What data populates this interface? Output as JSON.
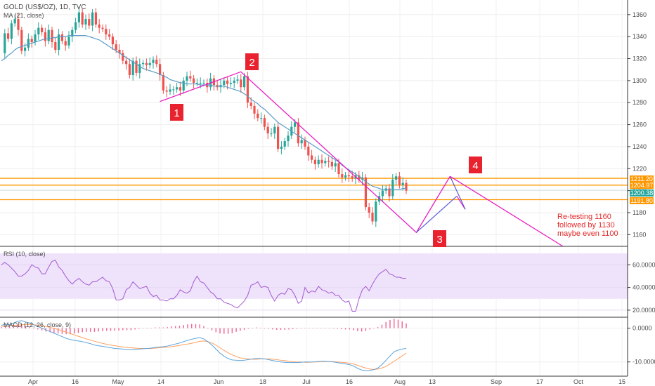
{
  "header": {
    "title": "GOLD (US$/OZ), 1D, TVC",
    "ma_label": "MA (21, close)"
  },
  "colors": {
    "up": "#26a69a",
    "down": "#ef5350",
    "ma": "#5b9cc8",
    "orange": "#ff9800",
    "magenta": "#e91ec1",
    "rsi": "#a25bd0",
    "rsi_band": "#efe2fb",
    "marker": "#e8232f",
    "orange_label": "#ff9800",
    "macd": "#5ba4db",
    "signal": "#ff9f60",
    "hist": "#f06292"
  },
  "chart_data": [
    {
      "type": "candlestick",
      "title": "GOLD (US$/OZ), 1D, TVC",
      "ylim": [
        1150,
        1372
      ],
      "yticks": [
        1160,
        1180,
        1200,
        1220,
        1240,
        1260,
        1280,
        1300,
        1320,
        1340,
        1360
      ],
      "xticks": [
        "Apr",
        "16",
        "May",
        "14",
        "Jun",
        "18",
        "Jul",
        "16",
        "Aug",
        "13",
        "Sep",
        "17",
        "Oct",
        "15"
      ],
      "close": [
        1325,
        1343,
        1338,
        1352,
        1356,
        1346,
        1327,
        1330,
        1338,
        1335,
        1342,
        1348,
        1344,
        1336,
        1346,
        1335,
        1328,
        1342,
        1336,
        1332,
        1340,
        1346,
        1353,
        1362,
        1351,
        1356,
        1350,
        1362,
        1351,
        1348,
        1347,
        1342,
        1340,
        1333,
        1328,
        1325,
        1318,
        1315,
        1305,
        1318,
        1307,
        1315,
        1316,
        1314,
        1316,
        1319,
        1315,
        1305,
        1291,
        1290,
        1292,
        1292,
        1294,
        1291,
        1300,
        1304,
        1302,
        1298,
        1298,
        1298,
        1298,
        1294,
        1302,
        1296,
        1294,
        1296,
        1300,
        1297,
        1298,
        1300,
        1301,
        1294,
        1304,
        1280,
        1277,
        1270,
        1266,
        1266,
        1258,
        1252,
        1252,
        1258,
        1238,
        1240,
        1245,
        1250,
        1258,
        1262,
        1243,
        1246,
        1240,
        1232,
        1228,
        1224,
        1228,
        1225,
        1227,
        1226,
        1222,
        1225,
        1215,
        1212,
        1214,
        1213,
        1211,
        1214,
        1210,
        1212,
        1185,
        1180,
        1172,
        1190,
        1195,
        1200,
        1202,
        1195,
        1210,
        1213,
        1205,
        1207,
        1200
      ],
      "ma": {
        "label": "MA (21, close)",
        "values": [
          1318,
          1320,
          1323,
          1325,
          1328,
          1330,
          1331,
          1332,
          1333,
          1334,
          1335,
          1336,
          1337,
          1338,
          1338,
          1339,
          1339,
          1340,
          1340,
          1340,
          1341,
          1341,
          1341,
          1341,
          1341,
          1341,
          1340,
          1339,
          1338,
          1337,
          1335,
          1333,
          1331,
          1329,
          1327,
          1325,
          1323,
          1321,
          1319,
          1317,
          1315,
          1313,
          1311,
          1310,
          1309,
          1308,
          1307,
          1306,
          1304,
          1303,
          1301,
          1300,
          1299,
          1298,
          1298,
          1297,
          1297,
          1297,
          1297,
          1296,
          1296,
          1296,
          1296,
          1295,
          1295,
          1295,
          1295,
          1294,
          1293,
          1292,
          1291,
          1290,
          1288,
          1286,
          1283,
          1281,
          1279,
          1276,
          1274,
          1271,
          1268,
          1265,
          1262,
          1260,
          1258,
          1256,
          1254,
          1252,
          1250,
          1248,
          1246,
          1244,
          1242,
          1240,
          1238,
          1236,
          1234,
          1232,
          1230,
          1228,
          1226,
          1223,
          1221,
          1219,
          1217,
          1215,
          1213,
          1211,
          1208,
          1206,
          1204,
          1203,
          1202,
          1201,
          1201,
          1201,
          1201,
          1201,
          1201,
          1202,
          1202
        ]
      },
      "horizontal_lines": [
        1211.2,
        1204.97,
        1200.38,
        1191.8
      ],
      "price_labels": [
        "1211.20",
        "1204.97",
        "1200.38",
        "1191.80"
      ],
      "wave_points": [
        {
          "label": "1",
          "index": 47,
          "price": 1281
        },
        {
          "label": "2",
          "index": 71,
          "price": 1308
        },
        {
          "label": "3",
          "index": 123,
          "price": 1162
        },
        {
          "label": "4",
          "index": 133,
          "price": 1213
        }
      ],
      "annotation": [
        "Re-testing 1160",
        "followed by 1130",
        "maybe even 1100"
      ]
    },
    {
      "type": "line",
      "title": "RSI (10, close)",
      "ylim": [
        15,
        75
      ],
      "yticks": [
        20,
        40,
        60
      ],
      "ytick_labels": [
        "20.0000",
        "40.0000",
        "60.0000"
      ],
      "band": [
        30,
        70
      ],
      "values": [
        60,
        62,
        60,
        57,
        54,
        50,
        50,
        52,
        55,
        60,
        58,
        57,
        52,
        52,
        58,
        63,
        64,
        58,
        55,
        50,
        46,
        43,
        46,
        48,
        45,
        43,
        42,
        45,
        45,
        47,
        49,
        46,
        45,
        39,
        29,
        29,
        30,
        38,
        40,
        45,
        42,
        39,
        40,
        41,
        35,
        32,
        33,
        29,
        29,
        28,
        30,
        30,
        33,
        38,
        36,
        35,
        37,
        45,
        50,
        45,
        44,
        40,
        36,
        34,
        30,
        30,
        27,
        26,
        25,
        23,
        22,
        25,
        28,
        33,
        42,
        43,
        45,
        40,
        41,
        40,
        33,
        28,
        33,
        35,
        34,
        39,
        38,
        33,
        26,
        28,
        40,
        35,
        37,
        36,
        41,
        38,
        37,
        35,
        36,
        33,
        33,
        29,
        27,
        28,
        19,
        19,
        30,
        38,
        41,
        37,
        43,
        48,
        52,
        54,
        56,
        52,
        51,
        49,
        49,
        48,
        48
      ]
    },
    {
      "type": "line",
      "title": "MACD (12, 26, close, 9)",
      "ylim": [
        -14,
        2.6
      ],
      "yticks": [
        0,
        -10
      ],
      "ytick_labels": [
        "0.0000",
        "-10.0000"
      ],
      "macd": [
        0.8,
        1.2,
        1.0,
        1.5,
        2.0,
        2.2,
        1.8,
        1.5,
        1.0,
        0.5,
        0.0,
        -0.5,
        -1.0,
        -1.5,
        -2.0,
        -2.5,
        -3.0,
        -3.4,
        -3.6,
        -3.8,
        -4.0,
        -4.3,
        -4.6,
        -5.0,
        -5.2,
        -5.4,
        -5.6,
        -5.8,
        -6.0,
        -6.1,
        -6.2,
        -6.3,
        -6.4,
        -6.3,
        -6.2,
        -6.1,
        -6.0,
        -5.9,
        -5.7,
        -5.6,
        -5.5,
        -5.3,
        -5.0,
        -4.7,
        -4.4,
        -4.0,
        -3.6,
        -3.3,
        -3.0,
        -2.8,
        -3.2,
        -4.0,
        -5.0,
        -6.2,
        -7.4,
        -8.3,
        -9.0,
        -9.4,
        -9.5,
        -9.6,
        -9.5,
        -9.3,
        -9.1,
        -9.0,
        -9.0,
        -9.1,
        -9.3,
        -9.6,
        -9.8,
        -10.0,
        -10.1,
        -10.2,
        -10.2,
        -10.2,
        -10.1,
        -10.0,
        -10.0,
        -10.0,
        -9.9,
        -9.8,
        -9.8,
        -9.9,
        -10.0,
        -10.2,
        -10.4,
        -10.6,
        -10.8,
        -11.2,
        -11.9,
        -12.4,
        -12.6,
        -12.5,
        -12.3,
        -11.8,
        -10.8,
        -9.5,
        -8.2,
        -7.0,
        -6.5,
        -6.2,
        -6.0
      ],
      "signal": [
        0.5,
        0.6,
        0.7,
        0.8,
        0.9,
        1.0,
        1.1,
        1.1,
        1.0,
        0.9,
        0.7,
        0.5,
        0.2,
        -0.1,
        -0.4,
        -0.8,
        -1.2,
        -1.6,
        -2.0,
        -2.4,
        -2.8,
        -3.2,
        -3.5,
        -3.9,
        -4.2,
        -4.5,
        -4.8,
        -5.0,
        -5.2,
        -5.4,
        -5.6,
        -5.7,
        -5.8,
        -5.9,
        -6.0,
        -6.0,
        -6.0,
        -6.0,
        -5.9,
        -5.8,
        -5.7,
        -5.6,
        -5.5,
        -5.3,
        -5.1,
        -4.9,
        -4.7,
        -4.5,
        -4.2,
        -3.9,
        -3.8,
        -4.0,
        -4.4,
        -5.0,
        -5.8,
        -6.6,
        -7.3,
        -7.9,
        -8.4,
        -8.8,
        -9.0,
        -9.1,
        -9.2,
        -9.2,
        -9.1,
        -9.1,
        -9.1,
        -9.2,
        -9.3,
        -9.5,
        -9.6,
        -9.8,
        -9.9,
        -10.0,
        -10.0,
        -10.1,
        -10.1,
        -10.0,
        -10.0,
        -9.9,
        -9.9,
        -9.9,
        -9.9,
        -10.0,
        -10.1,
        -10.2,
        -10.4,
        -10.6,
        -11.0,
        -11.4,
        -11.8,
        -12.1,
        -12.2,
        -12.1,
        -11.8,
        -11.3,
        -10.6,
        -9.8,
        -9.0,
        -8.2,
        -7.4
      ],
      "histogram": [
        0.3,
        0.6,
        0.3,
        0.7,
        1.1,
        1.2,
        0.7,
        0.4,
        0.0,
        -0.4,
        -0.7,
        -1.0,
        -1.2,
        -1.4,
        -1.6,
        -1.7,
        -1.8,
        -1.8,
        -1.6,
        -1.4,
        -1.2,
        -1.1,
        -1.1,
        -1.1,
        -1.0,
        -0.9,
        -0.8,
        -0.8,
        -0.8,
        -0.7,
        -0.6,
        -0.6,
        -0.6,
        -0.4,
        -0.2,
        -0.1,
        0.0,
        0.1,
        0.2,
        0.2,
        0.2,
        0.3,
        0.5,
        0.6,
        0.7,
        0.9,
        1.1,
        1.2,
        1.2,
        1.1,
        0.6,
        0.0,
        -0.6,
        -1.2,
        -1.6,
        -1.7,
        -1.7,
        -1.5,
        -1.1,
        -0.8,
        -0.5,
        -0.2,
        0.1,
        0.2,
        0.1,
        0.0,
        -0.2,
        -0.4,
        -0.5,
        -0.5,
        -0.5,
        -0.4,
        -0.3,
        -0.2,
        -0.1,
        0.1,
        0.1,
        0.0,
        0.1,
        0.1,
        0.1,
        0.0,
        -0.1,
        -0.2,
        -0.3,
        -0.4,
        -0.4,
        -0.6,
        -0.9,
        -1.0,
        -0.8,
        -0.4,
        -0.1,
        0.3,
        1.0,
        1.8,
        2.4,
        2.8,
        2.5,
        2.0,
        1.4
      ]
    }
  ]
}
